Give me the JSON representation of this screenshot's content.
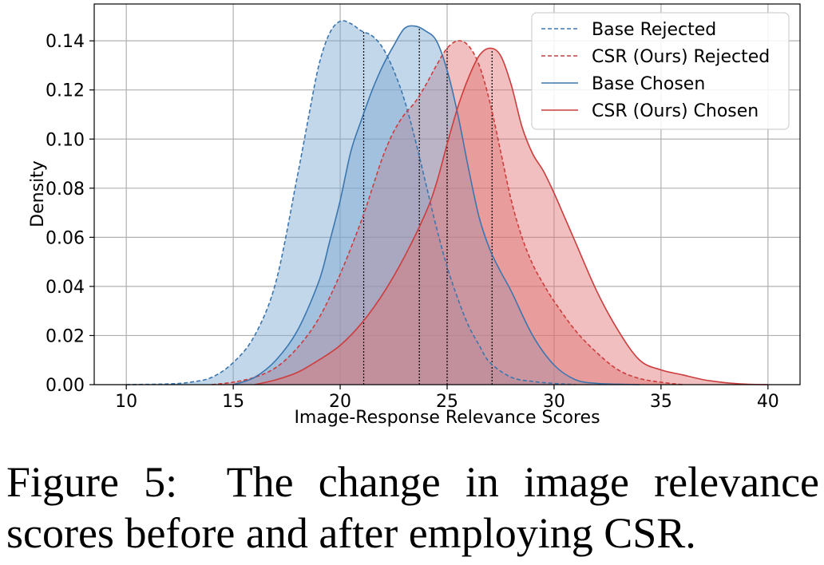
{
  "caption": {
    "label": "Figure 5:",
    "text": "The change in image relevance scores before and after employing CSR."
  },
  "chart_data": {
    "type": "area",
    "xlabel": "Image-Response Relevance Scores",
    "ylabel": "Density",
    "xlim": [
      8.5,
      41.5
    ],
    "ylim": [
      0,
      0.155
    ],
    "xticks": [
      10,
      15,
      20,
      25,
      30,
      35,
      40
    ],
    "xtick_labels": [
      "10",
      "15",
      "20",
      "25",
      "30",
      "35",
      "40"
    ],
    "yticks": [
      0,
      0.02,
      0.04,
      0.06,
      0.08,
      0.1,
      0.12,
      0.14
    ],
    "ytick_labels": [
      "0.00",
      "0.02",
      "0.04",
      "0.06",
      "0.08",
      "0.10",
      "0.12",
      "0.14"
    ],
    "grid": true,
    "legend_position": "top-right",
    "series": [
      {
        "name": "Base Rejected",
        "color": "#3b76af",
        "fill": "#7ba7d0",
        "linestyle": "dashed",
        "mean_line_x": 21.1,
        "x": [
          10,
          12,
          13,
          14,
          15,
          16,
          17,
          18,
          18.5,
          19,
          19.5,
          20,
          20.5,
          21,
          21.5,
          22,
          22.5,
          23,
          23.5,
          24,
          24.5,
          25,
          25.5,
          26,
          26.5,
          27,
          28,
          29,
          30,
          31
        ],
        "y": [
          0,
          0.0003,
          0.001,
          0.003,
          0.009,
          0.02,
          0.042,
          0.085,
          0.108,
          0.13,
          0.143,
          0.148,
          0.147,
          0.144,
          0.142,
          0.137,
          0.128,
          0.116,
          0.1,
          0.082,
          0.064,
          0.048,
          0.035,
          0.024,
          0.016,
          0.009,
          0.003,
          0.0013,
          0.0005,
          0
        ]
      },
      {
        "name": "CSR (Ours) Rejected",
        "color": "#cc3d3d",
        "fill": "#e07070",
        "linestyle": "dashed",
        "mean_line_x": 25.0,
        "x": [
          14,
          15,
          16,
          17,
          18,
          19,
          20,
          21,
          21.5,
          22,
          22.5,
          23,
          23.5,
          24,
          24.5,
          25,
          25.5,
          26,
          26.5,
          27,
          27.5,
          28,
          28.5,
          29,
          29.5,
          30,
          31,
          32,
          33,
          34,
          35,
          36
        ],
        "y": [
          0,
          0.001,
          0.003,
          0.007,
          0.015,
          0.027,
          0.045,
          0.067,
          0.08,
          0.093,
          0.103,
          0.11,
          0.115,
          0.122,
          0.13,
          0.137,
          0.14,
          0.138,
          0.13,
          0.115,
          0.095,
          0.075,
          0.06,
          0.049,
          0.041,
          0.034,
          0.022,
          0.013,
          0.006,
          0.0025,
          0.001,
          0
        ]
      },
      {
        "name": "Base Chosen",
        "color": "#3b76af",
        "fill": "#7ba7d0",
        "linestyle": "solid",
        "mean_line_x": 23.7,
        "x": [
          15,
          16,
          17,
          18,
          19,
          19.5,
          20,
          20.5,
          21,
          21.5,
          22,
          22.5,
          23,
          23.5,
          24,
          24.5,
          25,
          25.5,
          26,
          26.5,
          27,
          27.5,
          28,
          29,
          30,
          31,
          32,
          33,
          34
        ],
        "y": [
          0,
          0.003,
          0.01,
          0.022,
          0.042,
          0.058,
          0.075,
          0.095,
          0.108,
          0.12,
          0.13,
          0.138,
          0.145,
          0.146,
          0.144,
          0.14,
          0.128,
          0.11,
          0.088,
          0.068,
          0.055,
          0.046,
          0.038,
          0.02,
          0.008,
          0.002,
          0.0005,
          0.0002,
          0
        ]
      },
      {
        "name": "CSR (Ours) Chosen",
        "color": "#cc3d3d",
        "fill": "#e07070",
        "linestyle": "solid",
        "mean_line_x": 27.1,
        "x": [
          16,
          17,
          18,
          19,
          20,
          21,
          22,
          23,
          24,
          24.5,
          25,
          25.5,
          26,
          26.5,
          27,
          27.5,
          28,
          28.5,
          29,
          29.5,
          30,
          30.5,
          31,
          32,
          33,
          34,
          35,
          36,
          37,
          38,
          39,
          40
        ],
        "y": [
          0,
          0.002,
          0.005,
          0.01,
          0.016,
          0.025,
          0.037,
          0.052,
          0.07,
          0.082,
          0.098,
          0.113,
          0.125,
          0.134,
          0.137,
          0.134,
          0.122,
          0.105,
          0.094,
          0.087,
          0.078,
          0.068,
          0.058,
          0.038,
          0.022,
          0.01,
          0.006,
          0.004,
          0.002,
          0.0008,
          0.0002,
          0
        ]
      }
    ]
  }
}
